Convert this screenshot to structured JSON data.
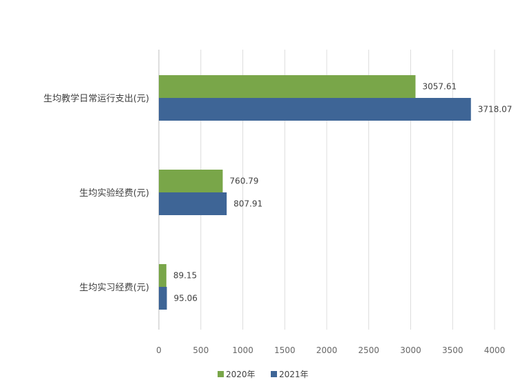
{
  "chart_data": {
    "type": "bar",
    "orientation": "horizontal",
    "categories": [
      "生均教学日常运行支出(元)",
      "生均实验经费(元)",
      "生均实习经费(元)"
    ],
    "series": [
      {
        "name": "2020年",
        "color": "#79a649",
        "values": [
          3057.61,
          760.79,
          89.15
        ]
      },
      {
        "name": "2021年",
        "color": "#3e6596",
        "values": [
          3718.07,
          807.91,
          95.06
        ]
      }
    ],
    "value_labels": [
      [
        "3057.61",
        "760.79",
        "89.15"
      ],
      [
        "3718.07",
        "807.91",
        "95.06"
      ]
    ],
    "x_ticks": [
      0,
      500,
      1000,
      1500,
      2000,
      2500,
      3000,
      3500,
      4000
    ],
    "xlim": [
      0,
      4000
    ],
    "grid": "vertical",
    "legend": "bottom"
  }
}
